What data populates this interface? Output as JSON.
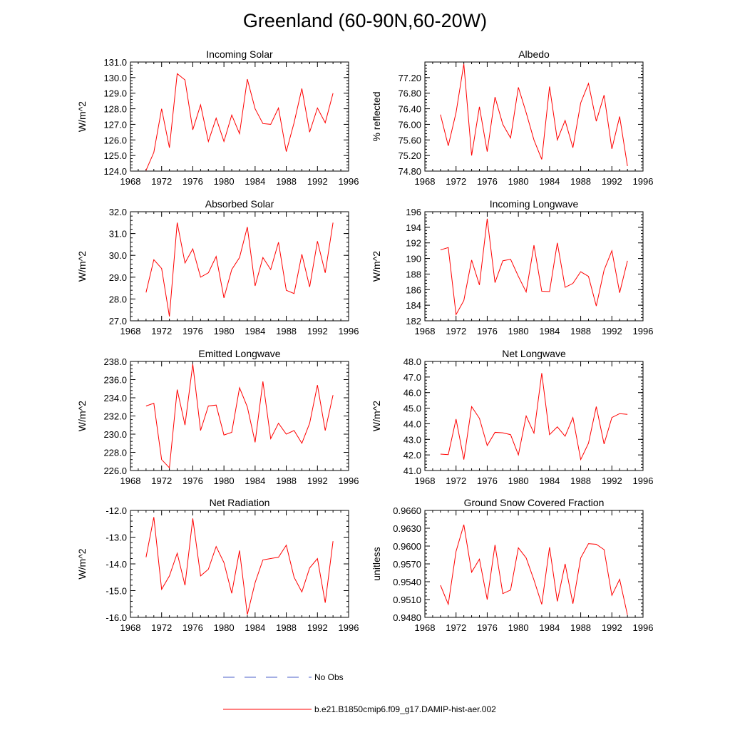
{
  "title": "Greenland (60-90N,60-20W)",
  "legend": {
    "obs_label": "No Obs",
    "obs_color": "#4b5fc9",
    "model_label": "b.e21.B1850cmip6.f09_g17.DAMIP-hist-aer.002",
    "model_color": "#ff0000"
  },
  "chart_data": [
    {
      "type": "line",
      "title": "Incoming Solar",
      "ylabel": "W/m^2",
      "xlim": [
        1968,
        1996
      ],
      "xticks": [
        "1968",
        "1972",
        "1976",
        "1980",
        "1984",
        "1988",
        "1992",
        "1996"
      ],
      "ylim": [
        124,
        131
      ],
      "yticks": [
        "124.0",
        "125.0",
        "126.0",
        "127.0",
        "128.0",
        "129.0",
        "130.0",
        "131.0"
      ],
      "yminor": 0.2,
      "series": [
        {
          "x": [
            1970,
            1971,
            1972,
            1973,
            1974,
            1975,
            1976,
            1977,
            1978,
            1979,
            1980,
            1981,
            1982,
            1983,
            1984,
            1985,
            1986,
            1987,
            1988,
            1989,
            1990,
            1991,
            1992,
            1993,
            1994
          ],
          "values": [
            124.05,
            125.2,
            128.0,
            125.5,
            130.25,
            129.85,
            126.65,
            128.25,
            125.9,
            127.4,
            125.9,
            127.6,
            126.4,
            129.9,
            128.0,
            127.05,
            127.0,
            128.05,
            125.25,
            127.1,
            129.3,
            126.5,
            128.05,
            127.1,
            129.0
          ]
        }
      ]
    },
    {
      "type": "line",
      "title": "Albedo",
      "ylabel": "% reflected",
      "xlim": [
        1968,
        1996
      ],
      "xticks": [
        "1968",
        "1972",
        "1976",
        "1980",
        "1984",
        "1988",
        "1992",
        "1996"
      ],
      "ylim": [
        74.8,
        77.6
      ],
      "yticks": [
        "74.80",
        "75.20",
        "75.60",
        "76.00",
        "76.40",
        "76.80",
        "77.20"
      ],
      "yminor": 0.08,
      "series": [
        {
          "x": [
            1970,
            1971,
            1972,
            1973,
            1974,
            1975,
            1976,
            1977,
            1978,
            1979,
            1980,
            1981,
            1982,
            1983,
            1984,
            1985,
            1986,
            1987,
            1988,
            1989,
            1990,
            1991,
            1992,
            1993,
            1994
          ],
          "values": [
            76.25,
            75.45,
            76.3,
            77.55,
            75.2,
            76.45,
            75.3,
            76.7,
            76.0,
            75.65,
            76.95,
            76.3,
            75.6,
            75.1,
            76.97,
            75.6,
            76.1,
            75.4,
            76.55,
            77.05,
            76.08,
            76.75,
            75.37,
            76.2,
            74.93
          ]
        }
      ]
    },
    {
      "type": "line",
      "title": "Absorbed Solar",
      "ylabel": "W/m^2",
      "xlim": [
        1968,
        1996
      ],
      "xticks": [
        "1968",
        "1972",
        "1976",
        "1980",
        "1984",
        "1988",
        "1992",
        "1996"
      ],
      "ylim": [
        27,
        32
      ],
      "yticks": [
        "27.0",
        "28.0",
        "29.0",
        "30.0",
        "31.0",
        "32.0"
      ],
      "yminor": 0.2,
      "series": [
        {
          "x": [
            1970,
            1971,
            1972,
            1973,
            1974,
            1975,
            1976,
            1977,
            1978,
            1979,
            1980,
            1981,
            1982,
            1983,
            1984,
            1985,
            1986,
            1987,
            1988,
            1989,
            1990,
            1991,
            1992,
            1993,
            1994
          ],
          "values": [
            28.3,
            29.8,
            29.4,
            27.2,
            31.5,
            29.65,
            30.3,
            29.0,
            29.2,
            29.95,
            28.05,
            29.35,
            29.9,
            31.3,
            28.6,
            29.9,
            29.35,
            30.6,
            28.4,
            28.25,
            30.05,
            28.55,
            30.65,
            29.2,
            31.5
          ]
        }
      ]
    },
    {
      "type": "line",
      "title": "Incoming Longwave",
      "ylabel": "W/m^2",
      "xlim": [
        1968,
        1996
      ],
      "xticks": [
        "1968",
        "1972",
        "1976",
        "1980",
        "1984",
        "1988",
        "1992",
        "1996"
      ],
      "ylim": [
        182,
        196
      ],
      "yticks": [
        "182",
        "184",
        "186",
        "188",
        "190",
        "192",
        "194",
        "196"
      ],
      "yminor": 0.4,
      "series": [
        {
          "x": [
            1970,
            1971,
            1972,
            1973,
            1974,
            1975,
            1976,
            1977,
            1978,
            1979,
            1980,
            1981,
            1982,
            1983,
            1984,
            1985,
            1986,
            1987,
            1988,
            1989,
            1990,
            1991,
            1992,
            1993,
            1994
          ],
          "values": [
            191.1,
            191.4,
            182.8,
            184.6,
            189.8,
            186.6,
            195.1,
            186.9,
            189.7,
            189.9,
            187.7,
            185.7,
            191.7,
            185.8,
            185.75,
            192.0,
            186.3,
            186.8,
            188.3,
            187.7,
            183.9,
            188.5,
            191.0,
            185.6,
            189.7
          ]
        }
      ]
    },
    {
      "type": "line",
      "title": "Emitted Longwave",
      "ylabel": "W/m^2",
      "xlim": [
        1968,
        1996
      ],
      "xticks": [
        "1968",
        "1972",
        "1976",
        "1980",
        "1984",
        "1988",
        "1992",
        "1996"
      ],
      "ylim": [
        226,
        238
      ],
      "yticks": [
        "226.0",
        "228.0",
        "230.0",
        "232.0",
        "234.0",
        "236.0",
        "238.0"
      ],
      "yminor": 0.4,
      "series": [
        {
          "x": [
            1970,
            1971,
            1972,
            1973,
            1974,
            1975,
            1976,
            1977,
            1978,
            1979,
            1980,
            1981,
            1982,
            1983,
            1984,
            1985,
            1986,
            1987,
            1988,
            1989,
            1990,
            1991,
            1992,
            1993,
            1994
          ],
          "values": [
            233.1,
            233.4,
            227.2,
            226.3,
            234.9,
            231.0,
            237.7,
            230.4,
            233.1,
            233.2,
            229.9,
            230.2,
            235.1,
            233.0,
            229.1,
            235.8,
            229.5,
            231.2,
            230.0,
            230.4,
            229.0,
            231.2,
            235.4,
            230.4,
            234.3
          ]
        }
      ]
    },
    {
      "type": "line",
      "title": "Net Longwave",
      "ylabel": "W/m^2",
      "xlim": [
        1968,
        1996
      ],
      "xticks": [
        "1968",
        "1972",
        "1976",
        "1980",
        "1984",
        "1988",
        "1992",
        "1996"
      ],
      "ylim": [
        41,
        48
      ],
      "yticks": [
        "41.0",
        "42.0",
        "43.0",
        "44.0",
        "45.0",
        "46.0",
        "47.0",
        "48.0"
      ],
      "yminor": 0.2,
      "series": [
        {
          "x": [
            1970,
            1971,
            1972,
            1973,
            1974,
            1975,
            1976,
            1977,
            1978,
            1979,
            1980,
            1981,
            1982,
            1983,
            1984,
            1985,
            1986,
            1987,
            1988,
            1989,
            1990,
            1991,
            1992,
            1993,
            1994
          ],
          "values": [
            42.05,
            42.02,
            44.3,
            41.7,
            45.1,
            44.35,
            42.6,
            43.45,
            43.42,
            43.3,
            42.0,
            44.5,
            43.4,
            47.25,
            43.3,
            43.8,
            43.2,
            44.4,
            41.7,
            42.75,
            45.1,
            42.7,
            44.4,
            44.65,
            44.6
          ]
        }
      ]
    },
    {
      "type": "line",
      "title": "Net Radiation",
      "ylabel": "W/m^2",
      "xlim": [
        1968,
        1996
      ],
      "xticks": [
        "1968",
        "1972",
        "1976",
        "1980",
        "1984",
        "1988",
        "1992",
        "1996"
      ],
      "ylim": [
        -16,
        -12
      ],
      "yticks": [
        "-16.0",
        "-15.0",
        "-14.0",
        "-13.0",
        "-12.0"
      ],
      "yminor": 0.2,
      "series": [
        {
          "x": [
            1970,
            1971,
            1972,
            1973,
            1974,
            1975,
            1976,
            1977,
            1978,
            1979,
            1980,
            1981,
            1982,
            1983,
            1984,
            1985,
            1986,
            1987,
            1988,
            1989,
            1990,
            1991,
            1992,
            1993,
            1994
          ],
          "values": [
            -13.75,
            -12.25,
            -14.95,
            -14.45,
            -13.6,
            -14.8,
            -12.3,
            -14.45,
            -14.2,
            -13.35,
            -13.95,
            -15.1,
            -13.5,
            -15.9,
            -14.7,
            -13.85,
            -13.8,
            -13.75,
            -13.3,
            -14.5,
            -15.05,
            -14.15,
            -13.8,
            -15.45,
            -13.15
          ]
        }
      ]
    },
    {
      "type": "line",
      "title": "Ground Snow Covered Fraction",
      "ylabel": "unitless",
      "xlim": [
        1968,
        1996
      ],
      "xticks": [
        "1968",
        "1972",
        "1976",
        "1980",
        "1984",
        "1988",
        "1992",
        "1996"
      ],
      "ylim": [
        0.948,
        0.966
      ],
      "yticks": [
        "0.9480",
        "0.9510",
        "0.9540",
        "0.9570",
        "0.9600",
        "0.9630",
        "0.9660"
      ],
      "yminor": 0.0006,
      "series": [
        {
          "x": [
            1970,
            1971,
            1972,
            1973,
            1974,
            1975,
            1976,
            1977,
            1978,
            1979,
            1980,
            1981,
            1982,
            1983,
            1984,
            1985,
            1986,
            1987,
            1988,
            1989,
            1990,
            1991,
            1992,
            1993,
            1994
          ],
          "values": [
            0.9534,
            0.9502,
            0.9591,
            0.9636,
            0.9556,
            0.9578,
            0.951,
            0.9602,
            0.952,
            0.9526,
            0.9597,
            0.958,
            0.9543,
            0.9502,
            0.9598,
            0.9507,
            0.957,
            0.9503,
            0.958,
            0.9604,
            0.9603,
            0.9594,
            0.9517,
            0.9544,
            0.9484
          ]
        }
      ]
    }
  ]
}
